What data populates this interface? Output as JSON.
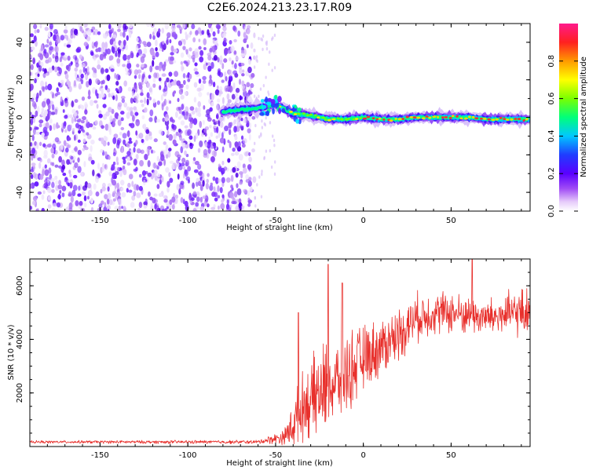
{
  "title": "C2E6.2024.213.23.17.R09",
  "chart_data": [
    {
      "type": "heatmap",
      "xlabel": "Height of straight line (km)",
      "ylabel": "Frequency (Hz)",
      "xlim": [
        -190,
        95
      ],
      "ylim": [
        -50,
        50
      ],
      "xticks": [
        -150,
        -100,
        -50,
        0,
        50
      ],
      "yticks": [
        -40,
        -20,
        0,
        20,
        40
      ],
      "colorbar": {
        "label": "Normalized spectral amplitude",
        "range": [
          0.0,
          1.0
        ],
        "ticks": [
          0.0,
          0.2,
          0.4,
          0.6,
          0.8
        ],
        "colormap": "rainbow (white-violet-blue-cyan-green-yellow-red-magenta)"
      },
      "features": [
        {
          "description": "noise field",
          "x_range": [
            -190,
            -62
          ],
          "freq_range": [
            -50,
            50
          ],
          "amplitude_range": [
            0.0,
            0.2
          ]
        },
        {
          "description": "signal ridge",
          "path_x": [
            -80,
            -70,
            -60,
            -50,
            -40,
            -30,
            -20,
            -10,
            0,
            10,
            20,
            30,
            40,
            50,
            60,
            70,
            80,
            95
          ],
          "path_freq": [
            3,
            4,
            5,
            7,
            2,
            1,
            -1,
            -1,
            0,
            -1,
            -1,
            0,
            0,
            0,
            0,
            -1,
            -1,
            -1
          ],
          "peak_amplitude": 0.9
        }
      ],
      "grid": false
    },
    {
      "type": "line",
      "xlabel": "Height of straight line (km)",
      "ylabel": "SNR (10 * v/v)",
      "xlim": [
        -190,
        95
      ],
      "ylim": [
        0,
        7000
      ],
      "xticks": [
        -150,
        -100,
        -50,
        0,
        50
      ],
      "yticks": [
        2000,
        4000,
        6000
      ],
      "color": "#e8302c",
      "series_envelope": {
        "x": [
          -190,
          -60,
          -50,
          -45,
          -40,
          -35,
          -30,
          -25,
          -20,
          -15,
          -10,
          -5,
          0,
          10,
          20,
          30,
          40,
          50,
          60,
          70,
          80,
          90,
          95
        ],
        "mean": [
          170,
          170,
          300,
          350,
          800,
          1500,
          1700,
          2000,
          2200,
          2400,
          2700,
          3000,
          3300,
          3700,
          4200,
          4800,
          5000,
          5000,
          4900,
          4800,
          4900,
          5000,
          5100
        ],
        "spread": [
          50,
          70,
          200,
          300,
          900,
          1200,
          1400,
          1800,
          1600,
          1500,
          1500,
          1400,
          1200,
          1100,
          1000,
          900,
          800,
          800,
          700,
          700,
          800,
          900,
          900
        ],
        "peak_annotations": [
          [
            -37,
            5000
          ],
          [
            -20,
            6800
          ],
          [
            -12,
            6100
          ],
          [
            62,
            7000
          ]
        ]
      },
      "grid": false
    }
  ]
}
